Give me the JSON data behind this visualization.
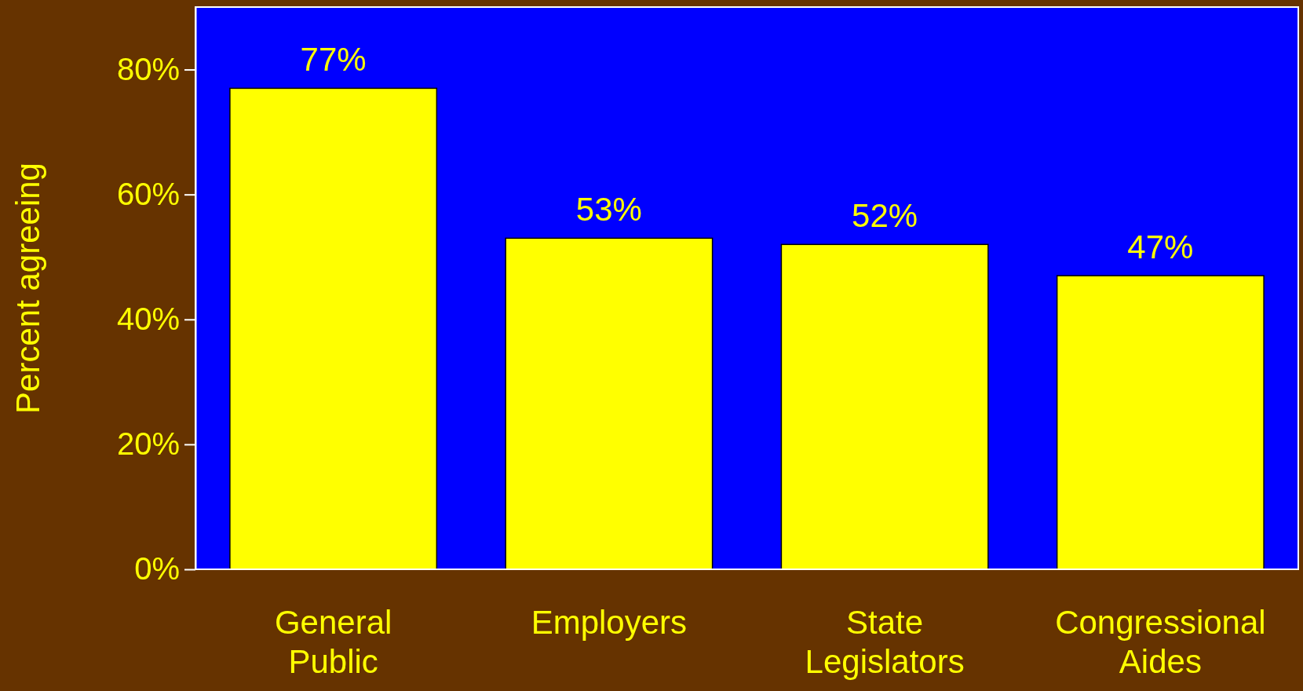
{
  "chart_data": {
    "type": "bar",
    "ylabel": "Percent agreeing",
    "categories": [
      "General Public",
      "Employers",
      "State Legislators",
      "Congressional Aides"
    ],
    "values": [
      77,
      53,
      52,
      47
    ],
    "color": "#ffff00",
    "value_labels": [
      "77%",
      "53%",
      "52%",
      "47%"
    ],
    "ylim": [
      0,
      90
    ],
    "yticks": [
      {
        "value": 0,
        "label": "0%"
      },
      {
        "value": 20,
        "label": "20%"
      },
      {
        "value": 40,
        "label": "40%"
      },
      {
        "value": 60,
        "label": "60%"
      },
      {
        "value": 80,
        "label": "80%"
      }
    ],
    "grid": false
  }
}
